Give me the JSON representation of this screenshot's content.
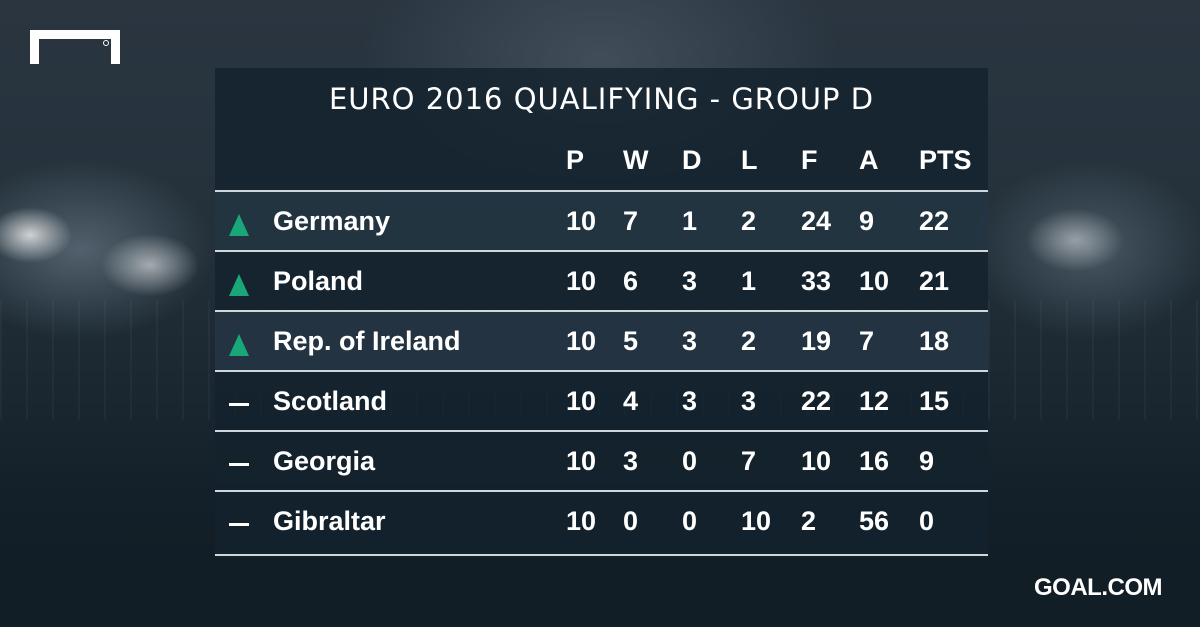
{
  "title": "EURO 2016 QUALIFYING - GROUP D",
  "headers": {
    "p": "P",
    "w": "W",
    "d": "D",
    "l": "L",
    "f": "F",
    "a": "A",
    "pts": "PTS"
  },
  "rows": [
    {
      "team": "Germany",
      "status": "qualified",
      "status_icon": "up-arrow-icon",
      "p": "10",
      "w": "7",
      "d": "1",
      "l": "2",
      "f": "24",
      "a": "9",
      "pts": "22"
    },
    {
      "team": "Poland",
      "status": "qualified",
      "status_icon": "up-arrow-icon",
      "p": "10",
      "w": "6",
      "d": "3",
      "l": "1",
      "f": "33",
      "a": "10",
      "pts": "21"
    },
    {
      "team": "Rep. of Ireland",
      "status": "qualified",
      "status_icon": "up-arrow-icon",
      "p": "10",
      "w": "5",
      "d": "3",
      "l": "2",
      "f": "19",
      "a": "7",
      "pts": "18"
    },
    {
      "team": "Scotland",
      "status": "eliminated",
      "status_icon": "dash-icon",
      "p": "10",
      "w": "4",
      "d": "3",
      "l": "3",
      "f": "22",
      "a": "12",
      "pts": "15"
    },
    {
      "team": "Georgia",
      "status": "eliminated",
      "status_icon": "dash-icon",
      "p": "10",
      "w": "3",
      "d": "0",
      "l": "7",
      "f": "10",
      "a": "16",
      "pts": "9"
    },
    {
      "team": "Gibraltar",
      "status": "eliminated",
      "status_icon": "dash-icon",
      "p": "10",
      "w": "0",
      "d": "0",
      "l": "10",
      "f": "2",
      "a": "56",
      "pts": "0"
    }
  ],
  "colors": {
    "qualified_arrow": "#19a77a",
    "panel": "#14222d",
    "text": "#ffffff"
  },
  "brand": "GOAL.COM"
}
